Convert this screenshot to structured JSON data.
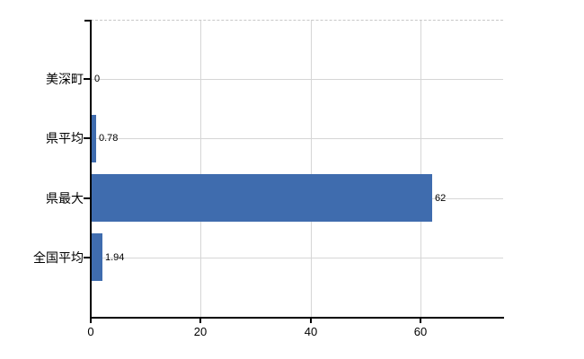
{
  "chart_data": {
    "type": "bar",
    "orientation": "horizontal",
    "title": "",
    "categories": [
      "美深町",
      "県平均",
      "県最大",
      "全国平均"
    ],
    "values": [
      0,
      0.78,
      62,
      1.94
    ],
    "value_labels": [
      "0",
      "0.78",
      "62",
      "1.94"
    ],
    "x_ticks": [
      0,
      20,
      40,
      60
    ],
    "x_tick_labels": [
      "0",
      "20",
      "40",
      "60"
    ],
    "xlim": [
      0,
      75
    ],
    "grid": true,
    "legend_position": "none",
    "colors": {
      "bar": "#3f6cae",
      "gridline": "#d6d6d6",
      "top_border_dashed": "#c8c8c8",
      "axis": "#000000",
      "text": "#000000",
      "background": "#ffffff"
    }
  }
}
